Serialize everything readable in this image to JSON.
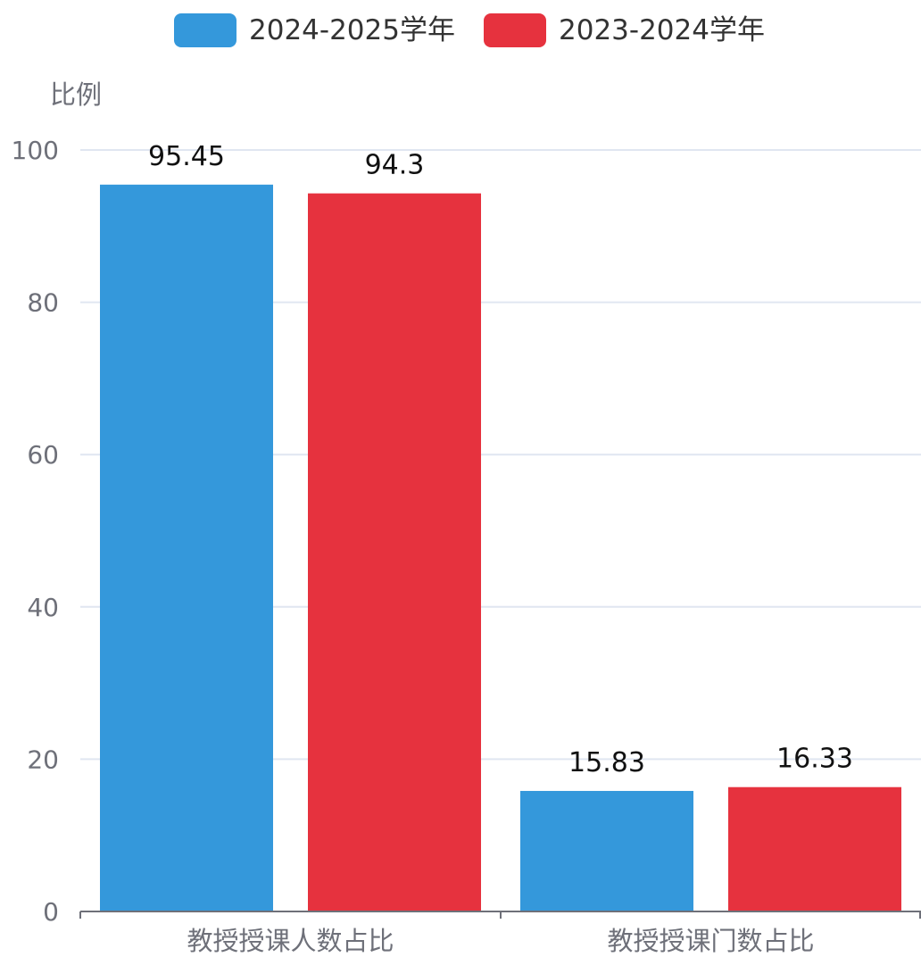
{
  "chart_data": {
    "type": "bar",
    "title": "",
    "xlabel": "",
    "ylabel": "比例",
    "categories": [
      "教授授课人数占比",
      "教授授课门数占比"
    ],
    "series": [
      {
        "name": "2024-2025学年",
        "color": "#3498db",
        "values": [
          95.45,
          15.83
        ],
        "labels": [
          "95.45",
          "15.83"
        ]
      },
      {
        "name": "2023-2024学年",
        "color": "#e6323e",
        "values": [
          94.3,
          16.33
        ],
        "labels": [
          "94.3",
          "16.33"
        ]
      }
    ],
    "ylim": [
      0,
      100
    ],
    "yticks": [
      0,
      20,
      40,
      60,
      80,
      100
    ],
    "grid": true,
    "legend": "top-center"
  }
}
